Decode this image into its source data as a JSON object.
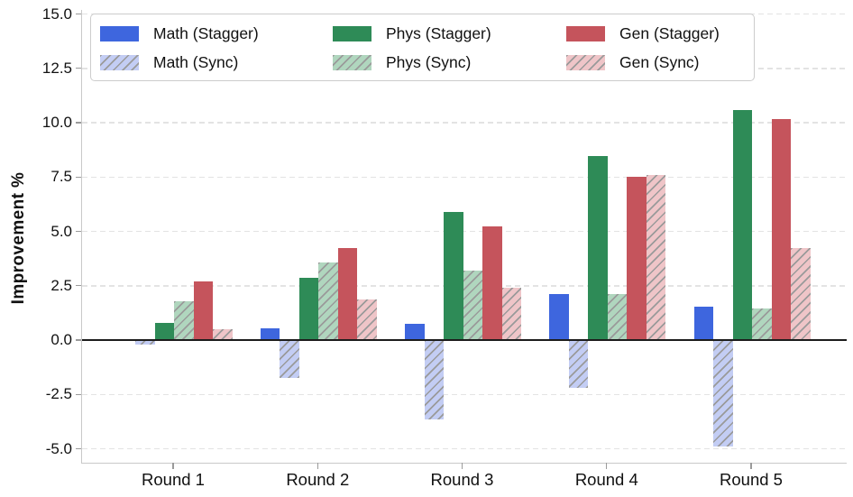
{
  "chart_data": {
    "type": "bar",
    "title": "",
    "xlabel": "",
    "ylabel": "Improvement %",
    "categories": [
      "Round 1",
      "Round 2",
      "Round 3",
      "Round 4",
      "Round 5"
    ],
    "yticks": [
      15.0,
      12.5,
      10.0,
      7.5,
      5.0,
      2.5,
      0.0,
      -2.5,
      -5.0
    ],
    "ylim": [
      -5.7,
      15.2
    ],
    "grid": "horizontal-dashed",
    "legend_position": "upper-left",
    "legend_columns": 3,
    "zero_line": true,
    "series": [
      {
        "name": "Math (Stagger)",
        "style": "solid",
        "hatch": "",
        "color": "#3e66de",
        "hatch_color": null,
        "values": [
          0.0,
          0.55,
          0.75,
          2.1,
          1.55
        ]
      },
      {
        "name": "Math (Sync)",
        "style": "hatched",
        "hatch": "//",
        "color": "#c3cdf4",
        "hatch_color": "#9a9a9a",
        "values": [
          -0.2,
          -1.75,
          -3.65,
          -2.2,
          -4.9
        ]
      },
      {
        "name": "Phys (Stagger)",
        "style": "solid",
        "hatch": "",
        "color": "#2e8b57",
        "hatch_color": null,
        "values": [
          0.8,
          2.85,
          5.9,
          8.45,
          10.6
        ]
      },
      {
        "name": "Phys (Sync)",
        "style": "hatched",
        "hatch": "//",
        "color": "#b0d6be",
        "hatch_color": "#9a9a9a",
        "values": [
          1.8,
          3.55,
          3.2,
          2.1,
          1.45
        ]
      },
      {
        "name": "Gen (Stagger)",
        "style": "solid",
        "hatch": "",
        "color": "#c5545c",
        "hatch_color": null,
        "values": [
          2.7,
          4.25,
          5.25,
          7.5,
          10.15
        ]
      },
      {
        "name": "Gen (Sync)",
        "style": "hatched",
        "hatch": "//",
        "color": "#efc5c8",
        "hatch_color": "#9a9a9a",
        "values": [
          0.5,
          1.85,
          2.4,
          7.6,
          4.25
        ]
      }
    ]
  }
}
